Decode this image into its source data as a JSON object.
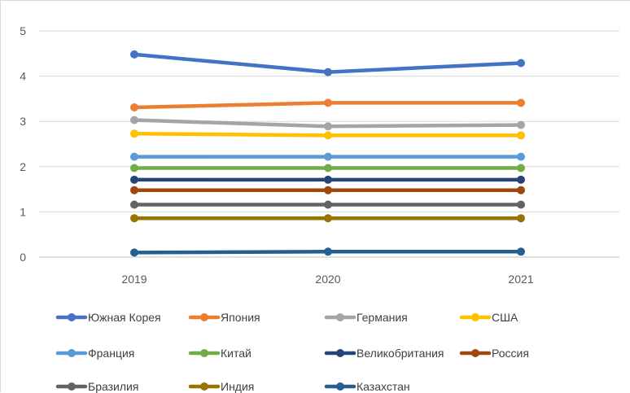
{
  "chart_data": {
    "type": "line",
    "x": [
      "2019",
      "2020",
      "2021"
    ],
    "ylim": [
      0,
      5
    ],
    "yticks": [
      "0",
      "1",
      "2",
      "3",
      "4",
      "5"
    ],
    "grid": true,
    "legend_position": "bottom",
    "series": [
      {
        "name": "Южная Корея",
        "color": "#4472c4",
        "values": [
          4.48,
          4.09,
          4.29
        ]
      },
      {
        "name": "Япония",
        "color": "#ed7d31",
        "values": [
          3.31,
          3.41,
          3.41
        ]
      },
      {
        "name": "Германия",
        "color": "#a5a5a5",
        "values": [
          3.03,
          2.89,
          2.92
        ]
      },
      {
        "name": "США",
        "color": "#ffc000",
        "values": [
          2.73,
          2.69,
          2.69
        ]
      },
      {
        "name": "Франция",
        "color": "#5b9bd5",
        "values": [
          2.22,
          2.22,
          2.22
        ]
      },
      {
        "name": "Китай",
        "color": "#70ad47",
        "values": [
          1.97,
          1.97,
          1.97
        ]
      },
      {
        "name": "Великобритания",
        "color": "#264478",
        "values": [
          1.71,
          1.71,
          1.71
        ]
      },
      {
        "name": "Россия",
        "color": "#9e480e",
        "values": [
          1.48,
          1.48,
          1.48
        ]
      },
      {
        "name": "Бразилия",
        "color": "#636363",
        "values": [
          1.16,
          1.16,
          1.16
        ]
      },
      {
        "name": "Индия",
        "color": "#997300",
        "values": [
          0.86,
          0.86,
          0.86
        ]
      },
      {
        "name": "Казахстан",
        "color": "#255e91",
        "values": [
          0.1,
          0.12,
          0.12
        ]
      }
    ]
  }
}
